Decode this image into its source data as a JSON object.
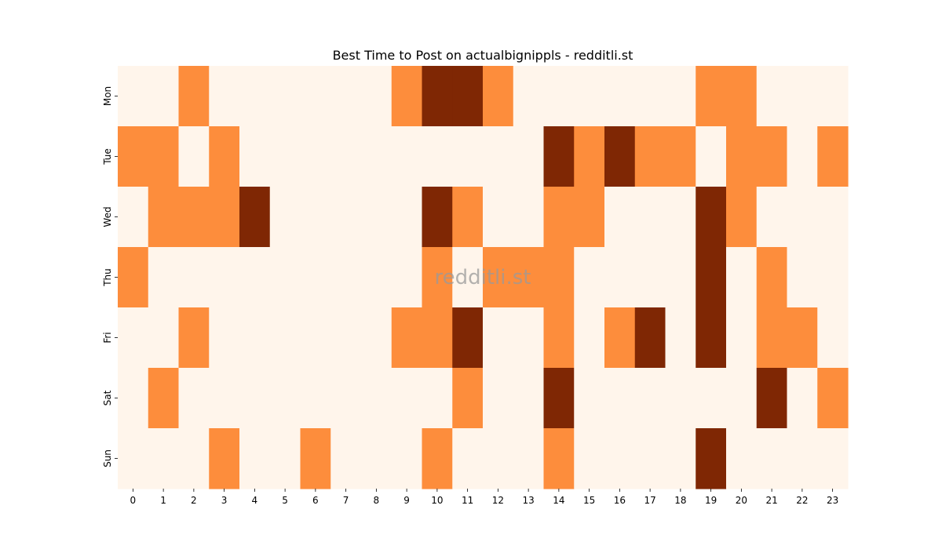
{
  "chart_data": {
    "type": "heatmap",
    "title": "Best Time to Post on actualbignippls - redditli.st",
    "watermark": "redditli.st",
    "x_categories": [
      "0",
      "1",
      "2",
      "3",
      "4",
      "5",
      "6",
      "7",
      "8",
      "9",
      "10",
      "11",
      "12",
      "13",
      "14",
      "15",
      "16",
      "17",
      "18",
      "19",
      "20",
      "21",
      "22",
      "23"
    ],
    "y_categories": [
      "Mon",
      "Tue",
      "Wed",
      "Thu",
      "Fri",
      "Sat",
      "Sun"
    ],
    "colors": [
      "#fff5eb",
      "#fd8d3c",
      "#7f2704"
    ],
    "values": [
      [
        0,
        0,
        1,
        0,
        0,
        0,
        0,
        0,
        0,
        1,
        2,
        2,
        1,
        0,
        0,
        0,
        0,
        0,
        0,
        1,
        1,
        0,
        0,
        0
      ],
      [
        1,
        1,
        0,
        1,
        0,
        0,
        0,
        0,
        0,
        0,
        0,
        0,
        0,
        0,
        2,
        1,
        2,
        1,
        1,
        0,
        1,
        1,
        0,
        1
      ],
      [
        0,
        1,
        1,
        1,
        2,
        0,
        0,
        0,
        0,
        0,
        2,
        1,
        0,
        0,
        1,
        1,
        0,
        0,
        0,
        2,
        1,
        0,
        0,
        0
      ],
      [
        1,
        0,
        0,
        0,
        0,
        0,
        0,
        0,
        0,
        0,
        1,
        0,
        1,
        1,
        1,
        0,
        0,
        0,
        0,
        2,
        0,
        1,
        0,
        0
      ],
      [
        0,
        0,
        1,
        0,
        0,
        0,
        0,
        0,
        0,
        1,
        1,
        2,
        0,
        0,
        1,
        0,
        1,
        2,
        0,
        2,
        0,
        1,
        1,
        0
      ],
      [
        0,
        1,
        0,
        0,
        0,
        0,
        0,
        0,
        0,
        0,
        0,
        1,
        0,
        0,
        2,
        0,
        0,
        0,
        0,
        0,
        0,
        2,
        0,
        1
      ],
      [
        0,
        0,
        0,
        1,
        0,
        0,
        1,
        0,
        0,
        0,
        1,
        0,
        0,
        0,
        1,
        0,
        0,
        0,
        0,
        2,
        0,
        0,
        0,
        0
      ]
    ]
  }
}
